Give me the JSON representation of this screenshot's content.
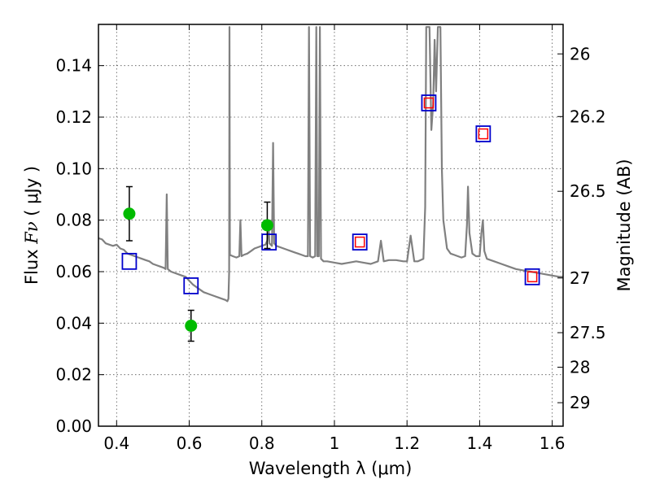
{
  "chart_data": {
    "type": "scatter",
    "xlabel": "Wavelength  λ (μm)",
    "ylabel_prefix": "Flux ",
    "ylabel_symbol": "Fν",
    "ylabel_suffix": " ( μJy )",
    "ylabel_right": "Magnitude (AB)",
    "xlim": [
      0.35,
      1.63
    ],
    "ylim": [
      0.0,
      0.156
    ],
    "x_ticks": [
      {
        "value": 0.4,
        "label": "0.4"
      },
      {
        "value": 0.6,
        "label": "0.6"
      },
      {
        "value": 0.8,
        "label": "0.8"
      },
      {
        "value": 1.0,
        "label": "1"
      },
      {
        "value": 1.2,
        "label": "1.2"
      },
      {
        "value": 1.4,
        "label": "1.4"
      },
      {
        "value": 1.6,
        "label": "1.6"
      }
    ],
    "y_ticks": [
      {
        "value": 0.0,
        "label": "0.00"
      },
      {
        "value": 0.02,
        "label": "0.02"
      },
      {
        "value": 0.04,
        "label": "0.04"
      },
      {
        "value": 0.06,
        "label": "0.06"
      },
      {
        "value": 0.08,
        "label": "0.08"
      },
      {
        "value": 0.1,
        "label": "0.10"
      },
      {
        "value": 0.12,
        "label": "0.12"
      },
      {
        "value": 0.14,
        "label": "0.14"
      }
    ],
    "right_ticks": [
      {
        "value": 26,
        "label": "26"
      },
      {
        "value": 26.2,
        "label": "26.2"
      },
      {
        "value": 26.5,
        "label": "26.5"
      },
      {
        "value": 27,
        "label": "27"
      },
      {
        "value": 27.5,
        "label": "27.5"
      },
      {
        "value": 28,
        "label": "28"
      },
      {
        "value": 29,
        "label": "29"
      }
    ],
    "series": [
      {
        "name": "model_spectrum",
        "kind": "line",
        "color": "#808080",
        "points": [
          [
            0.35,
            0.073
          ],
          [
            0.36,
            0.0725
          ],
          [
            0.37,
            0.071
          ],
          [
            0.38,
            0.0705
          ],
          [
            0.39,
            0.07
          ],
          [
            0.4,
            0.0705
          ],
          [
            0.41,
            0.069
          ],
          [
            0.42,
            0.0685
          ],
          [
            0.43,
            0.067
          ],
          [
            0.44,
            0.0665
          ],
          [
            0.45,
            0.066
          ],
          [
            0.46,
            0.0655
          ],
          [
            0.47,
            0.065
          ],
          [
            0.48,
            0.0645
          ],
          [
            0.49,
            0.064
          ],
          [
            0.5,
            0.063
          ],
          [
            0.51,
            0.0625
          ],
          [
            0.52,
            0.062
          ],
          [
            0.53,
            0.0615
          ],
          [
            0.535,
            0.061
          ],
          [
            0.538,
            0.09
          ],
          [
            0.541,
            0.061
          ],
          [
            0.55,
            0.06
          ],
          [
            0.56,
            0.0595
          ],
          [
            0.57,
            0.059
          ],
          [
            0.58,
            0.0585
          ],
          [
            0.59,
            0.058
          ],
          [
            0.6,
            0.0565
          ],
          [
            0.61,
            0.055
          ],
          [
            0.62,
            0.054
          ],
          [
            0.63,
            0.053
          ],
          [
            0.64,
            0.052
          ],
          [
            0.65,
            0.0515
          ],
          [
            0.66,
            0.051
          ],
          [
            0.67,
            0.0505
          ],
          [
            0.68,
            0.05
          ],
          [
            0.69,
            0.0495
          ],
          [
            0.7,
            0.049
          ],
          [
            0.705,
            0.0485
          ],
          [
            0.708,
            0.0495
          ],
          [
            0.71,
            0.06
          ],
          [
            0.711,
            0.155
          ],
          [
            0.712,
            0.0665
          ],
          [
            0.72,
            0.066
          ],
          [
            0.73,
            0.0655
          ],
          [
            0.738,
            0.066
          ],
          [
            0.741,
            0.08
          ],
          [
            0.744,
            0.066
          ],
          [
            0.75,
            0.0665
          ],
          [
            0.76,
            0.067
          ],
          [
            0.77,
            0.068
          ],
          [
            0.78,
            0.069
          ],
          [
            0.79,
            0.0695
          ],
          [
            0.8,
            0.07
          ],
          [
            0.81,
            0.0705
          ],
          [
            0.815,
            0.072
          ],
          [
            0.818,
            0.08
          ],
          [
            0.821,
            0.071
          ],
          [
            0.828,
            0.07
          ],
          [
            0.831,
            0.11
          ],
          [
            0.834,
            0.071
          ],
          [
            0.84,
            0.07
          ],
          [
            0.85,
            0.0695
          ],
          [
            0.86,
            0.069
          ],
          [
            0.87,
            0.0685
          ],
          [
            0.88,
            0.068
          ],
          [
            0.89,
            0.0675
          ],
          [
            0.9,
            0.067
          ],
          [
            0.91,
            0.0665
          ],
          [
            0.92,
            0.066
          ],
          [
            0.927,
            0.066
          ],
          [
            0.93,
            0.155
          ],
          [
            0.933,
            0.066
          ],
          [
            0.94,
            0.0655
          ],
          [
            0.947,
            0.066
          ],
          [
            0.95,
            0.155
          ],
          [
            0.953,
            0.066
          ],
          [
            0.957,
            0.066
          ],
          [
            0.96,
            0.155
          ],
          [
            0.963,
            0.065
          ],
          [
            0.97,
            0.064
          ],
          [
            0.98,
            0.064
          ],
          [
            1.0,
            0.0635
          ],
          [
            1.02,
            0.063
          ],
          [
            1.04,
            0.0635
          ],
          [
            1.06,
            0.064
          ],
          [
            1.08,
            0.0635
          ],
          [
            1.1,
            0.063
          ],
          [
            1.12,
            0.064
          ],
          [
            1.128,
            0.072
          ],
          [
            1.136,
            0.064
          ],
          [
            1.15,
            0.0645
          ],
          [
            1.17,
            0.0645
          ],
          [
            1.19,
            0.064
          ],
          [
            1.2,
            0.064
          ],
          [
            1.21,
            0.074
          ],
          [
            1.22,
            0.064
          ],
          [
            1.23,
            0.064
          ],
          [
            1.245,
            0.065
          ],
          [
            1.25,
            0.085
          ],
          [
            1.253,
            0.155
          ],
          [
            1.262,
            0.155
          ],
          [
            1.267,
            0.115
          ],
          [
            1.272,
            0.125
          ],
          [
            1.276,
            0.15
          ],
          [
            1.28,
            0.13
          ],
          [
            1.285,
            0.155
          ],
          [
            1.292,
            0.155
          ],
          [
            1.296,
            0.1
          ],
          [
            1.3,
            0.08
          ],
          [
            1.31,
            0.069
          ],
          [
            1.32,
            0.067
          ],
          [
            1.33,
            0.0665
          ],
          [
            1.34,
            0.066
          ],
          [
            1.35,
            0.0655
          ],
          [
            1.36,
            0.066
          ],
          [
            1.365,
            0.078
          ],
          [
            1.368,
            0.093
          ],
          [
            1.372,
            0.075
          ],
          [
            1.38,
            0.067
          ],
          [
            1.39,
            0.066
          ],
          [
            1.4,
            0.066
          ],
          [
            1.405,
            0.075
          ],
          [
            1.409,
            0.08
          ],
          [
            1.413,
            0.068
          ],
          [
            1.42,
            0.065
          ],
          [
            1.44,
            0.064
          ],
          [
            1.46,
            0.063
          ],
          [
            1.48,
            0.062
          ],
          [
            1.5,
            0.061
          ],
          [
            1.52,
            0.0605
          ],
          [
            1.54,
            0.06
          ],
          [
            1.56,
            0.0595
          ],
          [
            1.58,
            0.059
          ],
          [
            1.6,
            0.0585
          ],
          [
            1.62,
            0.058
          ],
          [
            1.63,
            0.058
          ]
        ]
      },
      {
        "name": "model_photometry",
        "kind": "open_square",
        "color": "#0000cc",
        "points": [
          [
            0.435,
            0.064
          ],
          [
            0.605,
            0.0545
          ],
          [
            0.82,
            0.0715
          ],
          [
            1.07,
            0.0715
          ],
          [
            1.26,
            0.1255
          ],
          [
            1.41,
            0.1135
          ],
          [
            1.545,
            0.058
          ]
        ]
      },
      {
        "name": "observed_photometry_red",
        "kind": "open_square_small",
        "color": "#ff0000",
        "points": [
          [
            1.07,
            0.0715
          ],
          [
            1.26,
            0.1255
          ],
          [
            1.41,
            0.1135
          ],
          [
            1.545,
            0.058
          ]
        ]
      },
      {
        "name": "observed_detections",
        "kind": "filled_circle_errorbar",
        "color": "#00bb00",
        "points": [
          {
            "x": 0.435,
            "y": 0.0825,
            "err": 0.0105
          },
          {
            "x": 0.605,
            "y": 0.039,
            "err": 0.006
          },
          {
            "x": 0.815,
            "y": 0.078,
            "err": 0.009
          }
        ]
      }
    ]
  }
}
